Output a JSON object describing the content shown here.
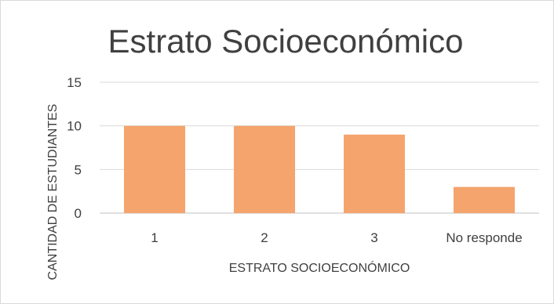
{
  "chart_data": {
    "type": "bar",
    "title": "Estrato Socioeconómico",
    "xlabel": "ESTRATO SOCIOECONÓMICO",
    "ylabel": "CANTIDAD DE ESTUDIANTES",
    "categories": [
      "1",
      "2",
      "3",
      "No responde"
    ],
    "values": [
      10,
      10,
      9,
      3
    ],
    "ylim": [
      0,
      15
    ],
    "yticks": [
      0,
      5,
      10,
      15
    ],
    "grid": true,
    "legend": "none",
    "colors": {
      "bar": "#f4a46c"
    }
  }
}
